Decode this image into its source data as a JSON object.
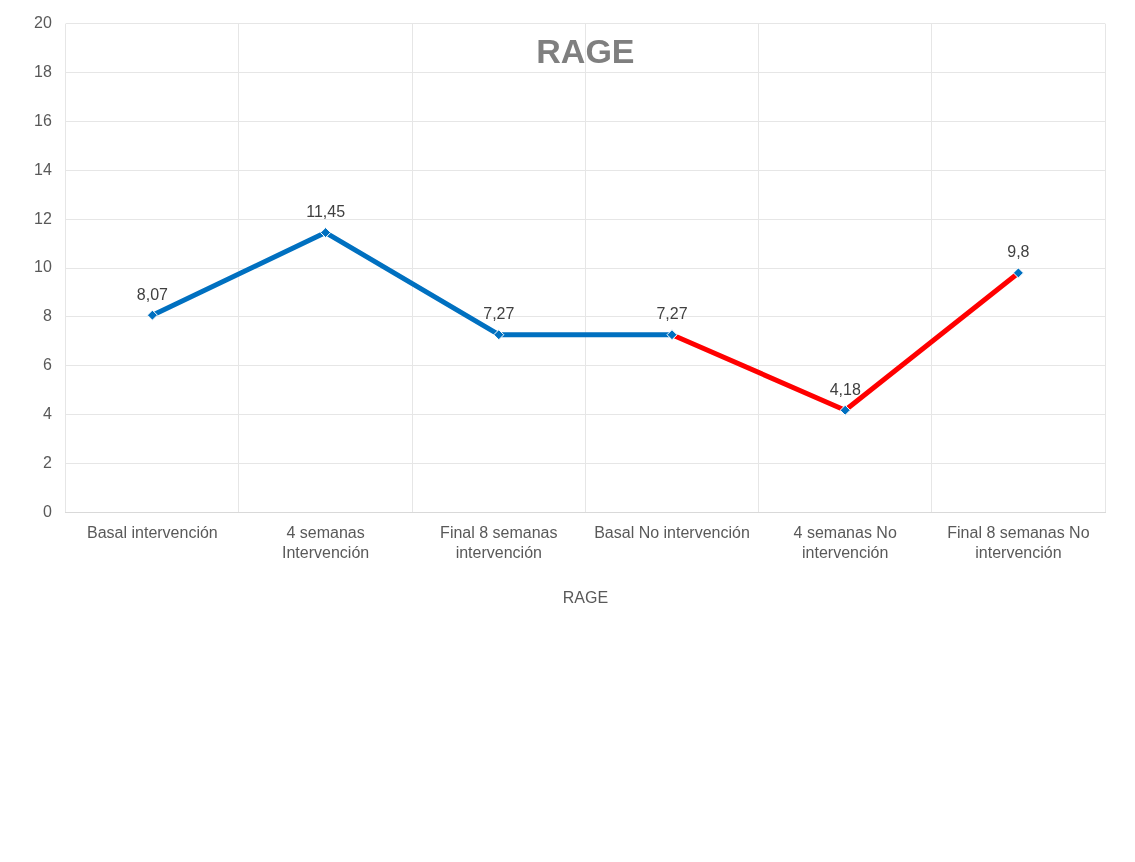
{
  "chart_data": {
    "type": "line",
    "title": "RAGE",
    "xlabel": "RAGE",
    "categories": [
      "Basal intervención",
      "4 semanas Intervención",
      "Final 8 semanas intervención",
      "Basal No intervención",
      "4 semanas No intervención",
      "Final 8 semanas No intervención"
    ],
    "series": [
      {
        "color": "#0070c0",
        "values": [
          8.07,
          11.45,
          7.27,
          7.27,
          null,
          null
        ],
        "value_labels": [
          "8,07",
          "11,45",
          "7,27",
          "7,27",
          null,
          null
        ]
      },
      {
        "color": "#ff0000",
        "colors": [
          null,
          null,
          null,
          "#0070c0",
          "#0070c0",
          "#0070c0"
        ],
        "values": [
          null,
          null,
          null,
          7.27,
          4.18,
          9.8
        ],
        "value_labels": [
          null,
          null,
          null,
          null,
          "4,18",
          "9,8"
        ]
      }
    ],
    "ylim": [
      0,
      20
    ],
    "yticks": [
      0,
      2,
      4,
      6,
      8,
      10,
      12,
      14,
      16,
      18,
      20
    ],
    "grid": true,
    "legend": false,
    "marker": "diamond",
    "line_style": "solid"
  }
}
